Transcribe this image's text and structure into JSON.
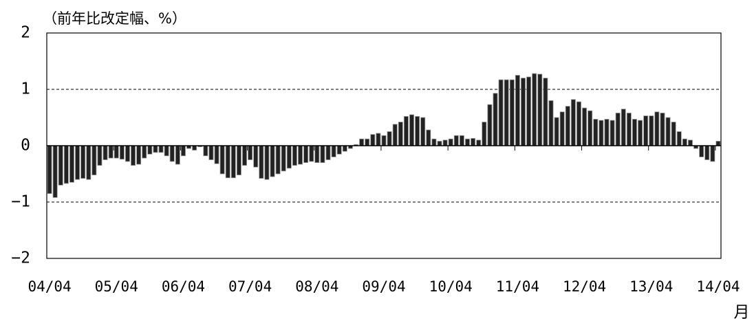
{
  "chart_data": {
    "type": "bar",
    "title": "（前年比改定幅、%）",
    "x_unit": "月",
    "categories": [
      "04/04",
      null,
      null,
      null,
      null,
      null,
      null,
      null,
      null,
      null,
      null,
      null,
      "05/04",
      null,
      null,
      null,
      null,
      null,
      null,
      null,
      null,
      null,
      null,
      null,
      "06/04",
      null,
      null,
      null,
      null,
      null,
      null,
      null,
      null,
      null,
      null,
      null,
      "07/04",
      null,
      null,
      null,
      null,
      null,
      null,
      null,
      null,
      null,
      null,
      null,
      "08/04",
      null,
      null,
      null,
      null,
      null,
      null,
      null,
      null,
      null,
      null,
      null,
      "09/04",
      null,
      null,
      null,
      null,
      null,
      null,
      null,
      null,
      null,
      null,
      null,
      "10/04",
      null,
      null,
      null,
      null,
      null,
      null,
      null,
      null,
      null,
      null,
      null,
      "11/04",
      null,
      null,
      null,
      null,
      null,
      null,
      null,
      null,
      null,
      null,
      null,
      "12/04",
      null,
      null,
      null,
      null,
      null,
      null,
      null,
      null,
      null,
      null,
      null,
      "13/04",
      null,
      null,
      null,
      null,
      null,
      null,
      null,
      null,
      null,
      null,
      null,
      "14/04"
    ],
    "values": [
      -0.85,
      -0.92,
      -0.7,
      -0.67,
      -0.65,
      -0.6,
      -0.58,
      -0.6,
      -0.52,
      -0.35,
      -0.25,
      -0.22,
      -0.22,
      -0.24,
      -0.28,
      -0.35,
      -0.33,
      -0.22,
      -0.15,
      -0.12,
      -0.12,
      -0.18,
      -0.28,
      -0.33,
      -0.18,
      -0.05,
      -0.08,
      -0.02,
      -0.18,
      -0.25,
      -0.32,
      -0.5,
      -0.57,
      -0.57,
      -0.52,
      -0.35,
      -0.25,
      -0.38,
      -0.58,
      -0.6,
      -0.55,
      -0.5,
      -0.45,
      -0.4,
      -0.35,
      -0.33,
      -0.3,
      -0.28,
      -0.3,
      -0.3,
      -0.25,
      -0.2,
      -0.15,
      -0.1,
      -0.05,
      0.02,
      0.12,
      0.12,
      0.2,
      0.22,
      0.18,
      0.25,
      0.38,
      0.42,
      0.52,
      0.55,
      0.52,
      0.5,
      0.28,
      0.12,
      0.08,
      0.1,
      0.12,
      0.18,
      0.18,
      0.12,
      0.13,
      0.1,
      0.42,
      0.73,
      0.93,
      1.17,
      1.17,
      1.17,
      1.25,
      1.2,
      1.22,
      1.28,
      1.27,
      1.2,
      0.8,
      0.5,
      0.6,
      0.7,
      0.82,
      0.78,
      0.67,
      0.62,
      0.47,
      0.45,
      0.47,
      0.45,
      0.58,
      0.65,
      0.58,
      0.47,
      0.45,
      0.53,
      0.53,
      0.6,
      0.58,
      0.5,
      0.42,
      0.25,
      0.12,
      0.1,
      -0.05,
      -0.2,
      -0.25,
      -0.28,
      0.08
    ],
    "color": "#222222",
    "ylim": [
      -2,
      2
    ],
    "yticks": [
      {
        "value": -2,
        "label": "−2"
      },
      {
        "value": -1,
        "label": "−1"
      },
      0,
      1,
      2
    ],
    "negative_tick_color": "#e00000",
    "grid": true
  }
}
